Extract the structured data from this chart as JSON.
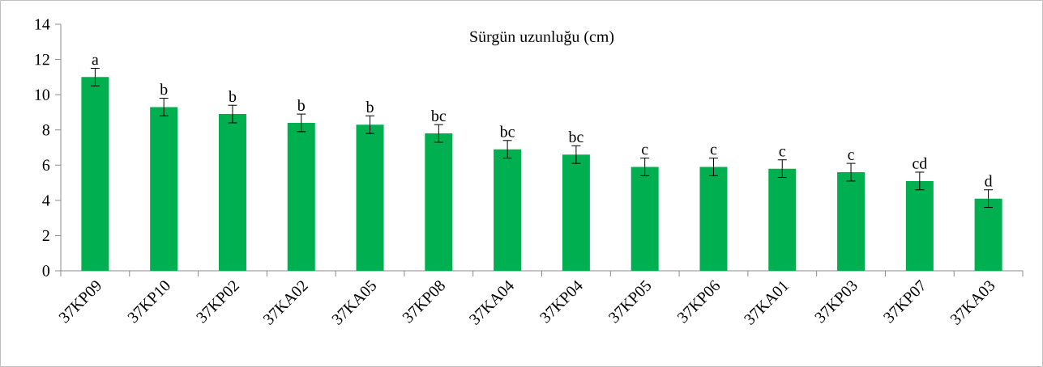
{
  "chart_data": {
    "type": "bar",
    "title": "Sürgün uzunluğu (cm)",
    "categories": [
      "37KP09",
      "37KP10",
      "37KP02",
      "37KA02",
      "37KA05",
      "37KP08",
      "37KA04",
      "37KP04",
      "37KP05",
      "37KP06",
      "37KA01",
      "37KP03",
      "37KP07",
      "37KA03"
    ],
    "values": [
      11.0,
      9.3,
      8.9,
      8.4,
      8.3,
      7.8,
      6.9,
      6.6,
      5.9,
      5.9,
      5.8,
      5.6,
      5.1,
      4.1
    ],
    "errors": [
      0.5,
      0.5,
      0.5,
      0.5,
      0.5,
      0.5,
      0.5,
      0.5,
      0.5,
      0.5,
      0.5,
      0.5,
      0.5,
      0.5
    ],
    "color": "#00b050",
    "ylim": [
      0,
      14
    ],
    "yticks": [
      0,
      2,
      4,
      6,
      8,
      10,
      12,
      14
    ],
    "grid": false,
    "annotations": [
      {
        "text": "a",
        "x": "37KP09",
        "y": 11.0
      },
      {
        "text": "b",
        "x": "37KP10",
        "y": 9.3
      },
      {
        "text": "b",
        "x": "37KP02",
        "y": 8.9
      },
      {
        "text": "b",
        "x": "37KA02",
        "y": 8.4
      },
      {
        "text": "b",
        "x": "37KA05",
        "y": 8.3
      },
      {
        "text": "bc",
        "x": "37KP08",
        "y": 7.8
      },
      {
        "text": "bc",
        "x": "37KA04",
        "y": 6.9
      },
      {
        "text": "bc",
        "x": "37KP04",
        "y": 6.6
      },
      {
        "text": "c",
        "x": "37KP05",
        "y": 5.9
      },
      {
        "text": "c",
        "x": "37KP06",
        "y": 5.9
      },
      {
        "text": "c",
        "x": "37KA01",
        "y": 5.8
      },
      {
        "text": "c",
        "x": "37KP03",
        "y": 5.6
      },
      {
        "text": "cd",
        "x": "37KP07",
        "y": 5.1
      },
      {
        "text": "d",
        "x": "37KA03",
        "y": 4.1
      }
    ]
  }
}
